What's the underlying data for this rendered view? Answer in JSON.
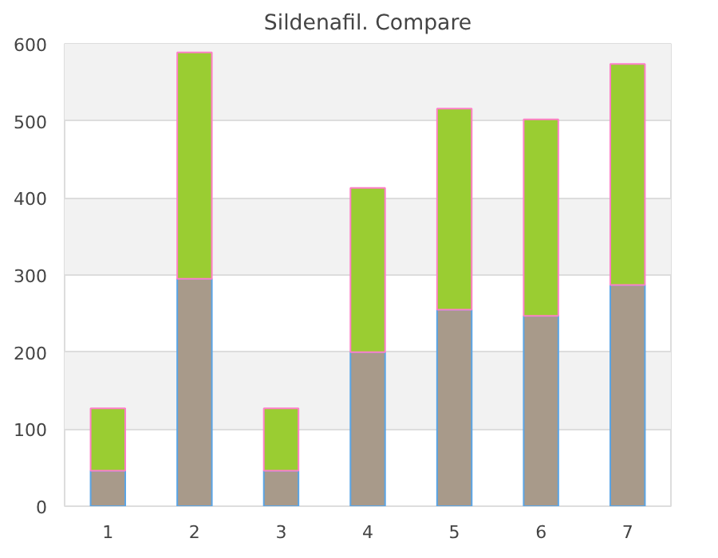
{
  "chart_data": {
    "type": "bar",
    "title": "Sildenafil. Compare",
    "stacked": true,
    "categories": [
      "1",
      "2",
      "3",
      "4",
      "5",
      "6",
      "7"
    ],
    "series": [
      {
        "color": "#a89a8a",
        "values": [
          46,
          295,
          46,
          200,
          255,
          247,
          287
        ]
      },
      {
        "color": "#9acd32",
        "values": [
          81,
          294,
          81,
          213,
          261,
          255,
          287
        ]
      }
    ],
    "ylim": [
      0,
      600
    ],
    "yticks": [
      0,
      100,
      200,
      300,
      400,
      500,
      600
    ],
    "grid": "y"
  }
}
